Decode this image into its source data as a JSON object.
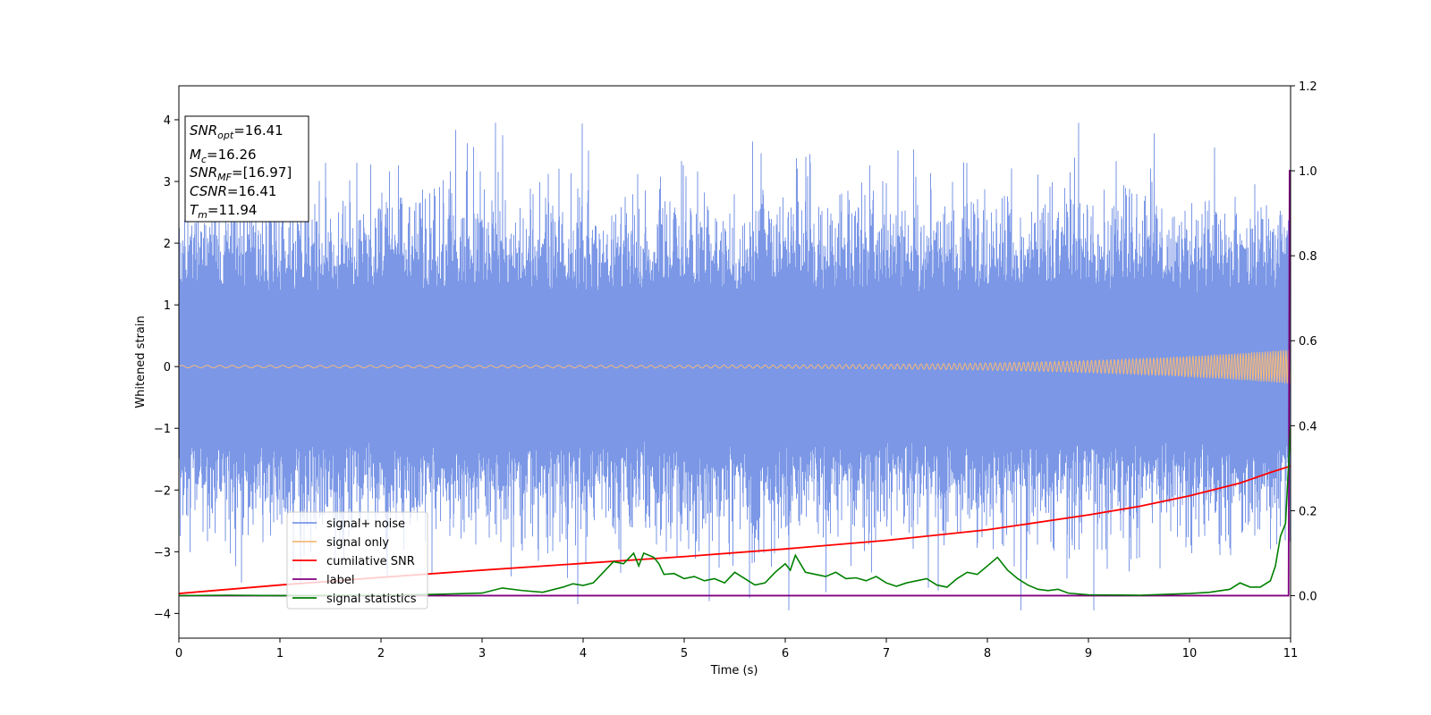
{
  "chart_data": {
    "type": "line",
    "title": "",
    "xlabel": "Time (s)",
    "ylabel": "Whitened strain",
    "xlim": [
      0,
      11
    ],
    "ylim": [
      -4.4,
      4.55
    ],
    "y2lim": [
      -0.1,
      1.2
    ],
    "x_ticks": [
      "0",
      "1",
      "2",
      "3",
      "4",
      "5",
      "6",
      "7",
      "8",
      "9",
      "10",
      "11"
    ],
    "y_ticks": [
      "−4",
      "−3",
      "−2",
      "−1",
      "0",
      "1",
      "2",
      "3",
      "4"
    ],
    "y2_ticks": [
      "0.0",
      "0.2",
      "0.4",
      "0.6",
      "0.8",
      "1.0",
      "1.2"
    ],
    "grid": false,
    "legend_position": "lower-left",
    "colors": {
      "signal_noise": "#7b97e6",
      "signal_only": "#f5b97a",
      "cumulative_snr": "#ff0000",
      "label": "#800080",
      "signal_statistics": "#008000"
    },
    "annotation": {
      "lines": [
        {
          "base": "SNR",
          "sub": "opt",
          "value": "=16.41"
        },
        {
          "base": "M",
          "sub": "c",
          "value": "=16.26"
        },
        {
          "base": "SNR",
          "sub": "MF",
          "value": "=[16.97]"
        },
        {
          "base": "CSNR",
          "sub": "",
          "value": "=16.41"
        },
        {
          "base": "T",
          "sub": "m",
          "value": "=11.94"
        }
      ]
    },
    "series": [
      {
        "name": "signal+ noise",
        "axis": "left",
        "description_hint": "dense noise approx ±2.3 with spikes up to 3.95 and down to −3.95",
        "spikes": [
          {
            "x": 0.62,
            "y": -3.5
          },
          {
            "x": 0.95,
            "y": 3.3
          },
          {
            "x": 1.45,
            "y": 3.3
          },
          {
            "x": 2.5,
            "y": -3.35
          },
          {
            "x": 3.2,
            "y": 3.75
          },
          {
            "x": 3.95,
            "y": -3.85
          },
          {
            "x": 4.05,
            "y": 3.5
          },
          {
            "x": 5.25,
            "y": -3.8
          },
          {
            "x": 5.65,
            "y": -3.75
          },
          {
            "x": 6.2,
            "y": 3.4
          },
          {
            "x": 7.8,
            "y": 3.3
          },
          {
            "x": 8.9,
            "y": 3.95
          },
          {
            "x": 9.05,
            "y": -3.95
          },
          {
            "x": 10.25,
            "y": 3.55
          }
        ]
      },
      {
        "name": "signal only",
        "axis": "left",
        "chirp": {
          "amp_start": 0.02,
          "amp_end": 0.28,
          "f_start": 8,
          "f_end": 40
        }
      },
      {
        "name": "cumilative SNR",
        "axis": "right",
        "x": [
          0,
          1,
          2,
          3,
          4,
          5,
          6,
          7,
          8,
          9,
          9.5,
          10,
          10.5,
          10.8,
          11
        ],
        "y": [
          0.005,
          0.025,
          0.043,
          0.06,
          0.076,
          0.092,
          0.11,
          0.13,
          0.155,
          0.19,
          0.21,
          0.235,
          0.265,
          0.29,
          0.305
        ]
      },
      {
        "name": "label",
        "axis": "right",
        "x": [
          0,
          10.98,
          10.99,
          11
        ],
        "y": [
          0.0,
          0.0,
          1.0,
          1.0
        ]
      },
      {
        "name": "signal statistics",
        "axis": "right",
        "x": [
          0,
          0.5,
          1,
          2,
          2.5,
          3,
          3.2,
          3.4,
          3.6,
          3.8,
          3.9,
          4.0,
          4.1,
          4.2,
          4.3,
          4.4,
          4.5,
          4.55,
          4.6,
          4.7,
          4.75,
          4.8,
          4.9,
          5.0,
          5.1,
          5.2,
          5.3,
          5.4,
          5.5,
          5.6,
          5.7,
          5.8,
          5.9,
          6.0,
          6.05,
          6.1,
          6.2,
          6.3,
          6.4,
          6.5,
          6.6,
          6.7,
          6.8,
          6.9,
          7.0,
          7.1,
          7.2,
          7.3,
          7.4,
          7.5,
          7.6,
          7.7,
          7.8,
          7.9,
          8.0,
          8.1,
          8.2,
          8.3,
          8.4,
          8.5,
          8.6,
          8.7,
          8.8,
          9.0,
          9.5,
          10.0,
          10.2,
          10.4,
          10.5,
          10.6,
          10.7,
          10.8,
          10.85,
          10.9,
          10.95,
          11
        ],
        "y": [
          0.0,
          0.001,
          0.0,
          0.001,
          0.003,
          0.006,
          0.018,
          0.012,
          0.008,
          0.02,
          0.028,
          0.024,
          0.03,
          0.055,
          0.08,
          0.075,
          0.1,
          0.07,
          0.1,
          0.09,
          0.075,
          0.05,
          0.052,
          0.04,
          0.045,
          0.035,
          0.04,
          0.03,
          0.055,
          0.04,
          0.025,
          0.03,
          0.055,
          0.075,
          0.06,
          0.095,
          0.055,
          0.05,
          0.045,
          0.055,
          0.04,
          0.042,
          0.035,
          0.045,
          0.03,
          0.022,
          0.03,
          0.035,
          0.04,
          0.025,
          0.02,
          0.04,
          0.055,
          0.05,
          0.07,
          0.09,
          0.06,
          0.04,
          0.025,
          0.015,
          0.012,
          0.015,
          0.006,
          0.002,
          0.001,
          0.005,
          0.008,
          0.015,
          0.03,
          0.02,
          0.02,
          0.035,
          0.07,
          0.14,
          0.17,
          0.4
        ]
      }
    ]
  }
}
